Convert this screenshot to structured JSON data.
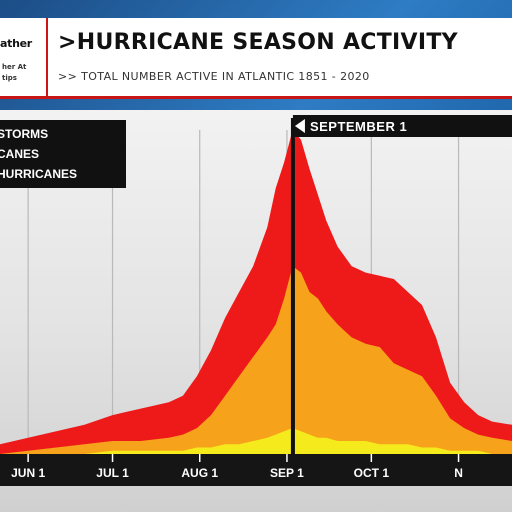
{
  "header": {
    "logo_line1": "ather",
    "logo_line2": "her At",
    "logo_line3": "tips",
    "title": "HURRICANE SEASON ACTIVITY",
    "subtitle": ">> TOTAL NUMBER ACTIVE IN ATLANTIC 1851 - 2020"
  },
  "colors": {
    "storms": "#ee1a1a",
    "hurricanes": "#f6a21a",
    "major_hurricanes": "#f4ea1c",
    "accent": "#c81515"
  },
  "chart_data": {
    "type": "area",
    "title": "HURRICANE SEASON ACTIVITY",
    "subtitle": ">> TOTAL NUMBER ACTIVE IN ATLANTIC 1851 - 2020",
    "x_ticks": [
      "JUN 1",
      "JUL 1",
      "AUG 1",
      "SEP 1",
      "OCT 1",
      "N"
    ],
    "x_day_range": [
      -10,
      172
    ],
    "y_range": [
      0,
      100
    ],
    "grid": "vertical",
    "legend_location": "top-left",
    "legend": [
      "STORMS",
      "CANES",
      "HURRICANES"
    ],
    "annotation": "SEPTEMBER 1",
    "x": [
      -10,
      0,
      10,
      20,
      30,
      40,
      50,
      55,
      60,
      65,
      70,
      75,
      80,
      85,
      88,
      91,
      94,
      97,
      100,
      103,
      106,
      110,
      115,
      120,
      125,
      130,
      135,
      140,
      145,
      150,
      155,
      160,
      165,
      172
    ],
    "series": [
      {
        "name": "STORMS",
        "values": [
          3,
          5,
          7,
          9,
          12,
          14,
          16,
          18,
          24,
          32,
          42,
          50,
          58,
          70,
          82,
          90,
          100,
          97,
          88,
          80,
          72,
          64,
          58,
          56,
          55,
          54,
          50,
          46,
          36,
          22,
          16,
          12,
          10,
          9
        ]
      },
      {
        "name": "CANES",
        "values": [
          0,
          1,
          2,
          3,
          4,
          4,
          5,
          6,
          8,
          12,
          18,
          24,
          30,
          36,
          40,
          48,
          58,
          56,
          50,
          48,
          44,
          40,
          36,
          34,
          33,
          28,
          26,
          24,
          18,
          11,
          8,
          6,
          5,
          4
        ]
      },
      {
        "name": "HURRICANES",
        "values": [
          0,
          0,
          0,
          0,
          1,
          1,
          1,
          1,
          2,
          2,
          3,
          3,
          4,
          5,
          6,
          7,
          8,
          7,
          6,
          5,
          5,
          4,
          4,
          4,
          3,
          3,
          3,
          2,
          2,
          1,
          1,
          1,
          0,
          0
        ]
      }
    ]
  }
}
